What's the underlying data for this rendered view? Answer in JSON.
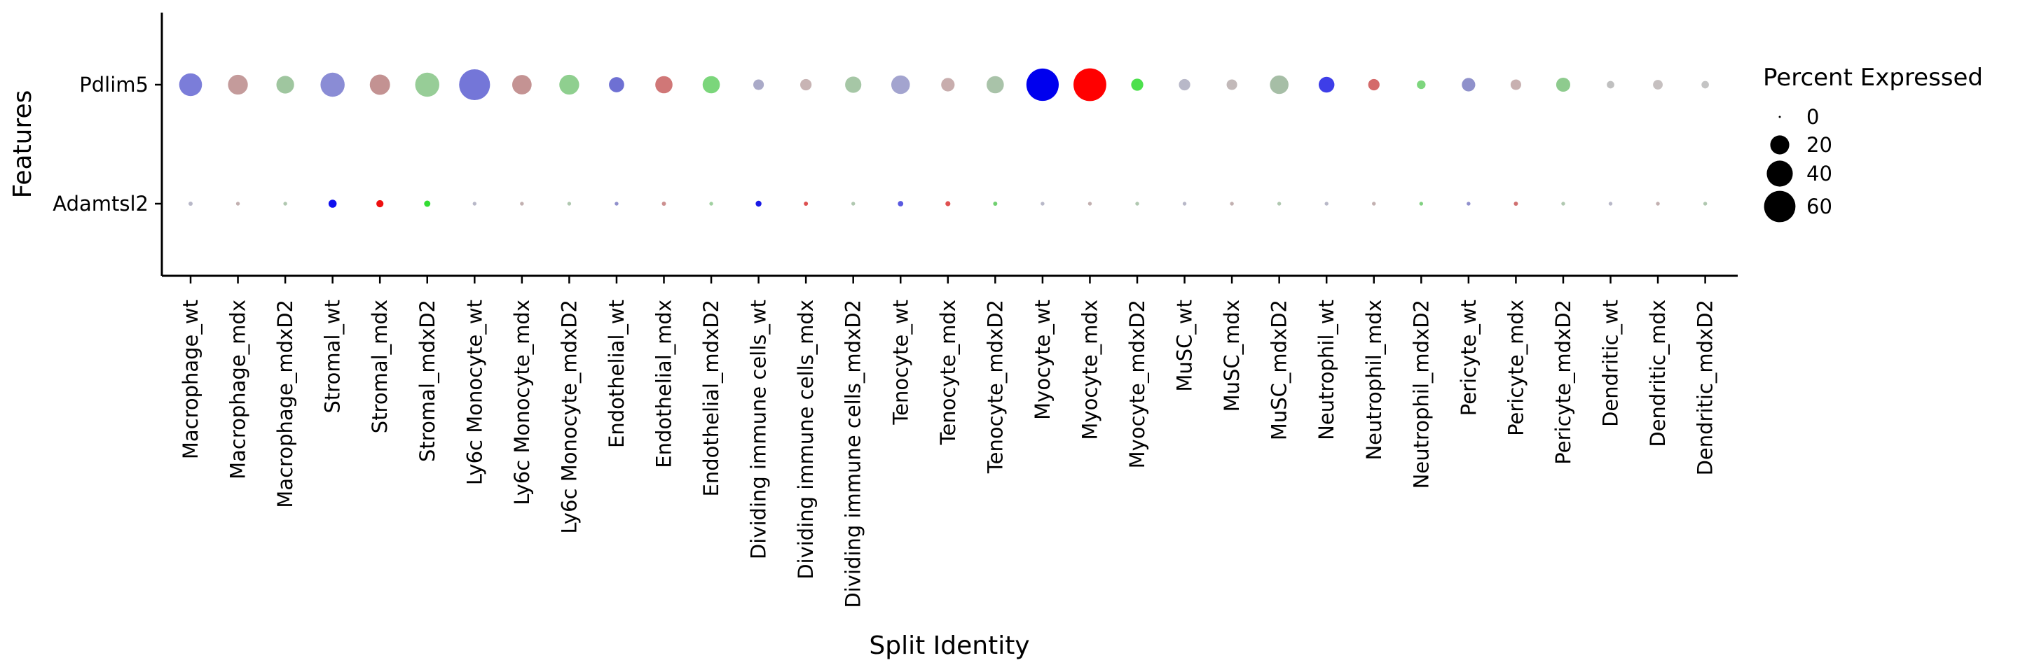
{
  "chart_data": {
    "type": "dot",
    "title": "",
    "xlabel": "Split Identity",
    "ylabel": "Features",
    "features": [
      "Pdlim5",
      "Adamtsl2"
    ],
    "categories": [
      "Macrophage_wt",
      "Macrophage_mdx",
      "Macrophage_mdxD2",
      "Stromal_wt",
      "Stromal_mdx",
      "Stromal_mdxD2",
      "Ly6c Monocyte_wt",
      "Ly6c Monocyte_mdx",
      "Ly6c Monocyte_mdxD2",
      "Endothelial_wt",
      "Endothelial_mdx",
      "Endothelial_mdxD2",
      "Dividing immune cells_wt",
      "Dividing immune cells_mdx",
      "Dividing immune cells_mdxD2",
      "Tenocyte_wt",
      "Tenocyte_mdx",
      "Tenocyte_mdxD2",
      "Myocyte_wt",
      "Myocyte_mdx",
      "Myocyte_mdxD2",
      "MuSC_wt",
      "MuSC_mdx",
      "MuSC_mdxD2",
      "Neutrophil_wt",
      "Neutrophil_mdx",
      "Neutrophil_mdxD2",
      "Pericyte_wt",
      "Pericyte_mdx",
      "Pericyte_mdxD2",
      "Dendritic_wt",
      "Dendritic_mdx",
      "Dendritic_mdxD2"
    ],
    "series": [
      {
        "feature": "Pdlim5",
        "percent_expressed": [
          30,
          22,
          17,
          34,
          23,
          34,
          58,
          21,
          22,
          12,
          16,
          16,
          5,
          6,
          14,
          19,
          9,
          16,
          64,
          66,
          7,
          6,
          5,
          19,
          13,
          6,
          3,
          9,
          5,
          10,
          2,
          4,
          2
        ],
        "colors": [
          "#7b7dd9",
          "#c49b9b",
          "#9fc69f",
          "#8a8cd5",
          "#c39292",
          "#97cd97",
          "#7476d8",
          "#c49393",
          "#8fcf8f",
          "#6e70d3",
          "#d07777",
          "#7bd67b",
          "#aaaac8",
          "#c8b4b4",
          "#a6c7a6",
          "#a3a4cf",
          "#c8adad",
          "#a9c3a9",
          "#0000ee",
          "#ff0000",
          "#4ce04c",
          "#b8b8c8",
          "#c2b9b9",
          "#a6bea6",
          "#3e3ee8",
          "#d46a6a",
          "#7ed67e",
          "#8f91cb",
          "#c8b0b0",
          "#8ecb8e",
          "#c0c0c0",
          "#c6c0c0",
          "#c4c4c4"
        ]
      },
      {
        "feature": "Adamtsl2",
        "percent_expressed": [
          0.3,
          0.2,
          0.2,
          2.5,
          1.8,
          1.2,
          0.2,
          0.2,
          0.2,
          0.2,
          0.3,
          0.2,
          1.0,
          0.3,
          0.2,
          0.8,
          0.6,
          0.3,
          0.2,
          0.2,
          0.2,
          0.2,
          0.2,
          0.2,
          0.2,
          0.2,
          0.2,
          0.2,
          0.3,
          0.2,
          0.2,
          0.2,
          0.2
        ],
        "colors": [
          "#b8b8c8",
          "#c2b0b0",
          "#b0c8b0",
          "#1010ee",
          "#ee1010",
          "#33dd33",
          "#b8b8c8",
          "#c2b0b0",
          "#b0c8b0",
          "#9090cc",
          "#cc9090",
          "#a0d0a0",
          "#1a1ae6",
          "#dd5050",
          "#b0c8b0",
          "#5a5ae0",
          "#e05050",
          "#70d070",
          "#b8b8c8",
          "#c2b0b0",
          "#b0c8b0",
          "#b8b8c8",
          "#c2b0b0",
          "#b0c8b0",
          "#b8b8c8",
          "#c2b0b0",
          "#80d080",
          "#9090cc",
          "#d07070",
          "#b0c8b0",
          "#b8b8c8",
          "#c2b0b0",
          "#b0c8b0"
        ]
      }
    ],
    "legend": {
      "title": "Percent Expressed",
      "placement": "right",
      "values": [
        0,
        20,
        40,
        60
      ],
      "labels": [
        "0",
        "20",
        "40",
        "60"
      ]
    },
    "grid": false
  }
}
